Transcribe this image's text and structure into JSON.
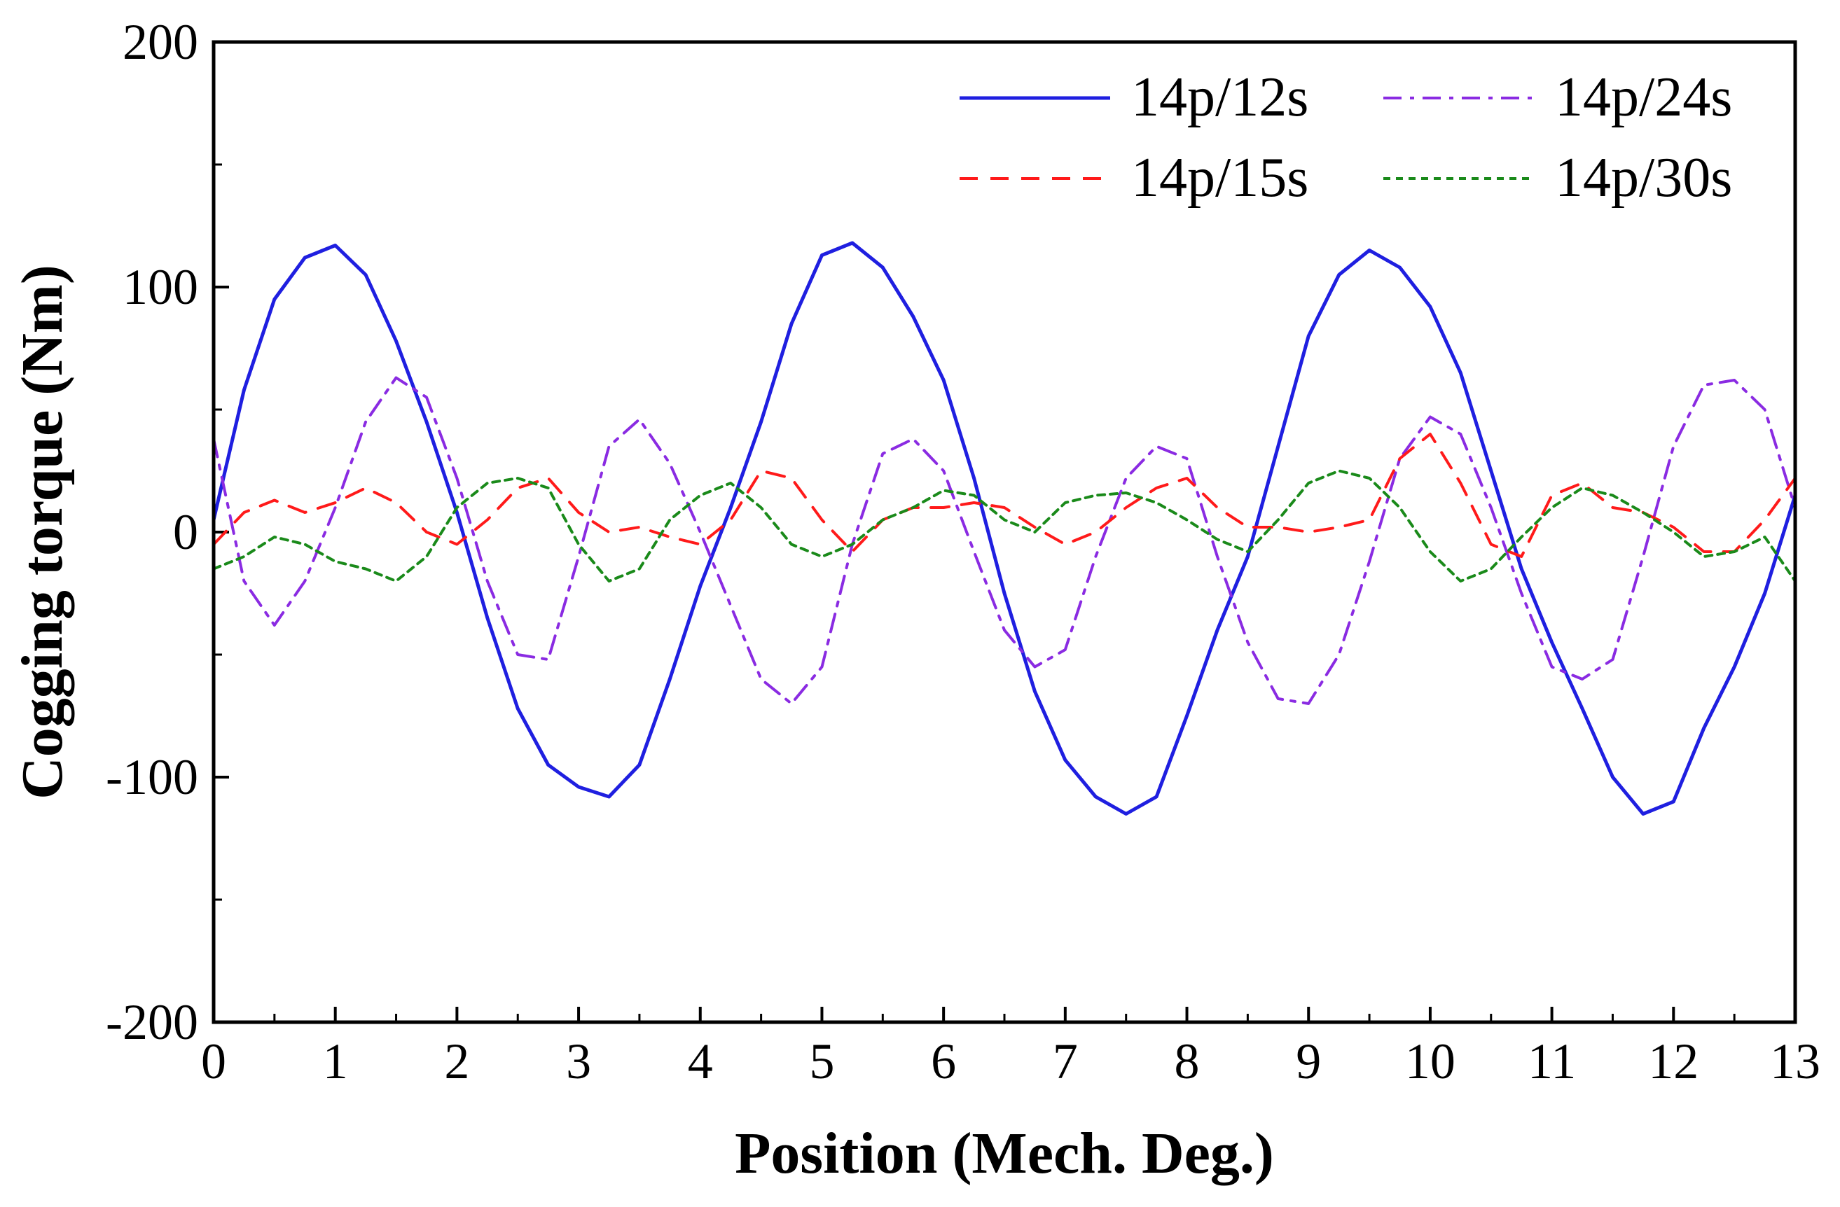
{
  "chart_data": {
    "type": "line",
    "title": "",
    "xlabel": "Position (Mech. Deg.)",
    "ylabel": "Cogging torque (Nm)",
    "xlim": [
      0,
      13
    ],
    "ylim": [
      -200,
      200
    ],
    "xticks": [
      0,
      1,
      2,
      3,
      4,
      5,
      6,
      7,
      8,
      9,
      10,
      11,
      12,
      13
    ],
    "yticks": [
      -200,
      -100,
      0,
      100,
      200
    ],
    "legend_position": "top-right",
    "x": [
      0,
      0.25,
      0.5,
      0.75,
      1,
      1.25,
      1.5,
      1.75,
      2,
      2.25,
      2.5,
      2.75,
      3,
      3.25,
      3.5,
      3.75,
      4,
      4.25,
      4.5,
      4.75,
      5,
      5.25,
      5.5,
      5.75,
      6,
      6.25,
      6.5,
      6.75,
      7,
      7.25,
      7.5,
      7.75,
      8,
      8.25,
      8.5,
      8.75,
      9,
      9.25,
      9.5,
      9.75,
      10,
      10.25,
      10.5,
      10.75,
      11,
      11.25,
      11.5,
      11.75,
      12,
      12.25,
      12.5,
      12.75,
      13
    ],
    "series": [
      {
        "name": "14p/12s",
        "color": "#1f1fe0",
        "dash": "solid",
        "values": [
          5,
          58,
          95,
          112,
          117,
          105,
          78,
          45,
          8,
          -35,
          -72,
          -95,
          -104,
          -108,
          -95,
          -60,
          -22,
          10,
          45,
          85,
          113,
          118,
          108,
          88,
          62,
          22,
          -25,
          -65,
          -93,
          -108,
          -115,
          -108,
          -75,
          -40,
          -10,
          35,
          80,
          105,
          115,
          108,
          92,
          65,
          25,
          -15,
          -45,
          -72,
          -100,
          -115,
          -110,
          -80,
          -55,
          -25,
          15
        ]
      },
      {
        "name": "14p/24s",
        "color": "#8a2be2",
        "dash": "dashdot",
        "values": [
          38,
          -20,
          -38,
          -20,
          10,
          45,
          63,
          55,
          22,
          -20,
          -50,
          -52,
          -10,
          35,
          46,
          28,
          0,
          -30,
          -60,
          -70,
          -55,
          -5,
          32,
          38,
          25,
          -8,
          -40,
          -55,
          -48,
          -10,
          22,
          35,
          30,
          -10,
          -45,
          -68,
          -70,
          -50,
          -12,
          30,
          47,
          40,
          10,
          -25,
          -55,
          -60,
          -52,
          -10,
          35,
          60,
          62,
          50,
          10
        ]
      },
      {
        "name": "14p/15s",
        "color": "#ff1a1a",
        "dash": "dashed",
        "values": [
          -5,
          8,
          13,
          8,
          12,
          18,
          12,
          0,
          -5,
          5,
          18,
          22,
          8,
          0,
          2,
          -2,
          -5,
          5,
          25,
          22,
          5,
          -8,
          5,
          10,
          10,
          12,
          10,
          2,
          -5,
          0,
          10,
          18,
          22,
          10,
          2,
          2,
          0,
          2,
          5,
          30,
          40,
          20,
          -5,
          -10,
          15,
          20,
          10,
          8,
          2,
          -8,
          -8,
          5,
          22
        ]
      },
      {
        "name": "14p/30s",
        "color": "#1a8a1a",
        "dash": "dotted",
        "values": [
          -15,
          -10,
          -2,
          -5,
          -12,
          -15,
          -20,
          -10,
          10,
          20,
          22,
          18,
          -5,
          -20,
          -15,
          5,
          15,
          20,
          10,
          -5,
          -10,
          -5,
          5,
          10,
          17,
          15,
          5,
          0,
          12,
          15,
          16,
          12,
          5,
          -3,
          -8,
          5,
          20,
          25,
          22,
          10,
          -8,
          -20,
          -15,
          -2,
          10,
          18,
          15,
          8,
          0,
          -10,
          -8,
          -2,
          -20
        ]
      }
    ]
  }
}
